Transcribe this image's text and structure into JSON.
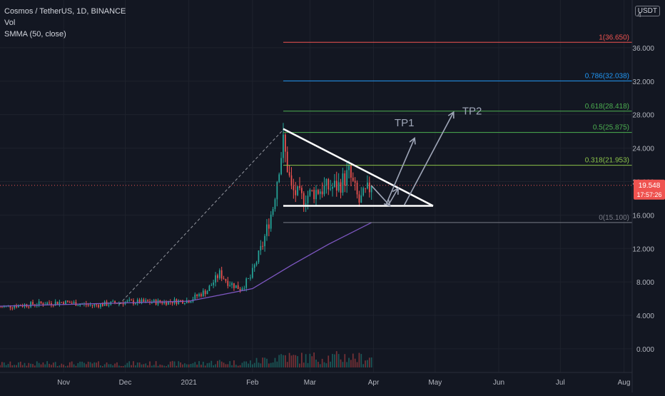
{
  "header": {
    "symbol": "Cosmos / TetherUS, 1D, BINANCE",
    "volume_label": "Vol",
    "indicator_label": "SMMA (50, close)",
    "currency_button": "USDT"
  },
  "price_label": {
    "value": "19.548",
    "countdown": "17:57:26"
  },
  "colors": {
    "background": "#131722",
    "up": "#26a69a",
    "down": "#ef5350",
    "smma": "#7e57c2",
    "axis_text": "#b2b5be",
    "grid": "#1e222d",
    "triangle": "#ffffff",
    "arrow": "#9fa6b8"
  },
  "chart_data": {
    "type": "candlestick",
    "y_axis": {
      "ticks": [
        0,
        4,
        8,
        12,
        16,
        20,
        24,
        28,
        32,
        36
      ],
      "tick_labels": [
        "0.000",
        "4.000",
        "8.000",
        "12.000",
        "16.000",
        "20.000",
        "24.000",
        "28.000",
        "32.000",
        "36.000"
      ],
      "top_label": "4",
      "ylim": [
        -1.2,
        40
      ]
    },
    "x_axis": {
      "labels": [
        "Nov",
        "Dec",
        "2021",
        "Feb",
        "Mar",
        "Apr",
        "May",
        "Jun",
        "Jul",
        "Aug"
      ],
      "months": [
        {
          "label": "Nov",
          "date": "2020-11-01"
        },
        {
          "label": "Dec",
          "date": "2020-12-01"
        },
        {
          "label": "2021",
          "date": "2021-01-01"
        },
        {
          "label": "Feb",
          "date": "2021-02-01"
        },
        {
          "label": "Mar",
          "date": "2021-03-01"
        },
        {
          "label": "Apr",
          "date": "2021-04-01"
        },
        {
          "label": "May",
          "date": "2021-05-01"
        },
        {
          "label": "Jun",
          "date": "2021-06-01"
        },
        {
          "label": "Jul",
          "date": "2021-07-01"
        },
        {
          "label": "Aug",
          "date": "2021-08-01"
        }
      ],
      "range": [
        "2020-10-01",
        "2021-08-05"
      ]
    },
    "price_keypoints": [
      {
        "date": "2020-10-01",
        "price": 5.0
      },
      {
        "date": "2020-10-20",
        "price": 5.4
      },
      {
        "date": "2020-11-01",
        "price": 5.6
      },
      {
        "date": "2020-11-15",
        "price": 5.2
      },
      {
        "date": "2020-12-01",
        "price": 5.6
      },
      {
        "date": "2020-12-20",
        "price": 5.6
      },
      {
        "date": "2021-01-01",
        "price": 5.8
      },
      {
        "date": "2021-01-10",
        "price": 7.0
      },
      {
        "date": "2021-01-16",
        "price": 9.0
      },
      {
        "date": "2021-01-20",
        "price": 8.0
      },
      {
        "date": "2021-01-26",
        "price": 7.2
      },
      {
        "date": "2021-01-31",
        "price": 8.5
      },
      {
        "date": "2021-02-06",
        "price": 12.5
      },
      {
        "date": "2021-02-11",
        "price": 17.0
      },
      {
        "date": "2021-02-14",
        "price": 22.0
      },
      {
        "date": "2021-02-16",
        "price": 24.6
      },
      {
        "date": "2021-02-20",
        "price": 19.0
      },
      {
        "date": "2021-02-25",
        "price": 18.0
      },
      {
        "date": "2021-03-05",
        "price": 19.0
      },
      {
        "date": "2021-03-15",
        "price": 19.5
      },
      {
        "date": "2021-03-20",
        "price": 21.0
      },
      {
        "date": "2021-03-25",
        "price": 17.5
      },
      {
        "date": "2021-03-31",
        "price": 19.548
      }
    ],
    "smma_keypoints": [
      {
        "date": "2020-10-01",
        "value": 5.1
      },
      {
        "date": "2021-01-01",
        "value": 5.7
      },
      {
        "date": "2021-02-01",
        "value": 7.2
      },
      {
        "date": "2021-02-20",
        "value": 10.0
      },
      {
        "date": "2021-03-10",
        "value": 12.5
      },
      {
        "date": "2021-03-31",
        "value": 15.1
      }
    ],
    "fib_levels": [
      {
        "label": "1(36.650)",
        "value": 36.65,
        "color": "#ef5350"
      },
      {
        "label": "0.786(32.038)",
        "value": 32.038,
        "color": "#2196f3"
      },
      {
        "label": "0.618(28.418)",
        "value": 28.418,
        "color": "#4caf50"
      },
      {
        "label": "0.5(25.875)",
        "value": 25.875,
        "color": "#4caf50"
      },
      {
        "label": "0.318(21.953)",
        "value": 21.953,
        "color": "#8bc34a"
      },
      {
        "label": "0(15.100)",
        "value": 15.1,
        "color": "#787b86"
      }
    ],
    "fib_start_date": "2021-02-16",
    "triangle": {
      "apex": {
        "date": "2021-02-16",
        "price": 26.3
      },
      "base_left": {
        "date": "2021-02-16",
        "price": 17.1
      },
      "base_right": {
        "date": "2021-04-30",
        "price": 17.1
      }
    },
    "current_price_line": 19.548,
    "targets": [
      {
        "label": "TP1",
        "from": {
          "date": "2021-04-07",
          "price": 17.2
        },
        "to": {
          "date": "2021-04-21",
          "price": 25.2
        },
        "label_at": {
          "date": "2021-04-16",
          "price": 26.6
        }
      },
      {
        "label": "TP2",
        "from": {
          "date": "2021-04-16",
          "price": 17.2
        },
        "to": {
          "date": "2021-05-10",
          "price": 28.3
        },
        "label_at": {
          "date": "2021-05-19",
          "price": 28.0
        }
      }
    ],
    "pattern_arrow": {
      "from": {
        "date": "2021-03-31",
        "price": 19.5
      },
      "to": {
        "date": "2021-04-09",
        "price": 17.1
      }
    },
    "breakout_arrow": {
      "from": {
        "date": "2021-04-08",
        "price": 17.1
      },
      "to": {
        "date": "2021-04-13",
        "price": 19.2
      }
    }
  }
}
